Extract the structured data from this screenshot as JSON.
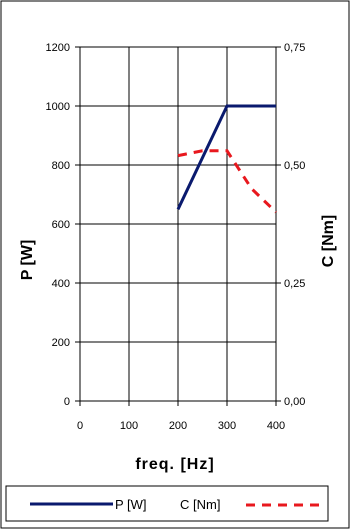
{
  "chart_data": {
    "type": "line",
    "xlabel": "freq. [Hz]",
    "ylabel_left": "P [W]",
    "ylabel_right": "C [Nm]",
    "x_ticks": [
      "0",
      "100",
      "200",
      "300",
      "400"
    ],
    "y_left_ticks": [
      "0",
      "200",
      "400",
      "600",
      "800",
      "1000",
      "1200"
    ],
    "y_right_ticks": [
      "0,00",
      "0,25",
      "0,50",
      "0,75"
    ],
    "xlim": [
      0,
      400
    ],
    "ylim_left": [
      0,
      1200
    ],
    "ylim_right": [
      0,
      0.75
    ],
    "grid": true,
    "legend_position": "bottom",
    "series": [
      {
        "name": "P [W]",
        "axis": "left",
        "color": "#0a1a6e",
        "style": "solid",
        "x": [
          200,
          300,
          400
        ],
        "y": [
          650,
          1000,
          1000
        ]
      },
      {
        "name": "C [Nm]",
        "axis": "right",
        "color": "#e8181e",
        "style": "dashed",
        "x": [
          200,
          250,
          300,
          350,
          400
        ],
        "y": [
          0.52,
          0.53,
          0.53,
          0.45,
          0.4
        ]
      }
    ]
  }
}
